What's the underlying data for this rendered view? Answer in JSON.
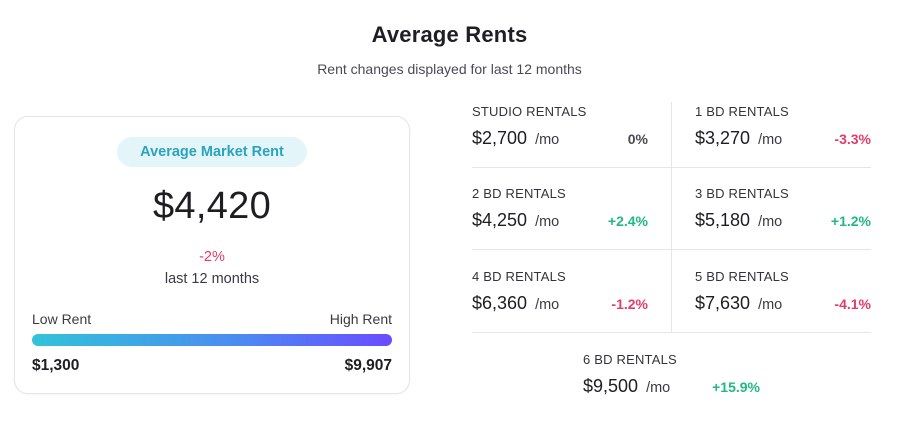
{
  "header": {
    "title": "Average Rents",
    "subtitle": "Rent changes displayed for last 12 months"
  },
  "market": {
    "badge": "Average Market Rent",
    "value": "$4,420",
    "change": "-2%",
    "period": "last 12 months",
    "low_label": "Low Rent",
    "high_label": "High Rent",
    "low_value": "$1,300",
    "high_value": "$9,907",
    "gradient_colors": [
      "#31c3d8",
      "#6a4cff"
    ]
  },
  "rentals": [
    {
      "label": "STUDIO RENTALS",
      "price": "$2,700",
      "unit": "/mo",
      "change": "0%",
      "trend": "neutral"
    },
    {
      "label": "1 BD RENTALS",
      "price": "$3,270",
      "unit": "/mo",
      "change": "-3.3%",
      "trend": "down"
    },
    {
      "label": "2 BD RENTALS",
      "price": "$4,250",
      "unit": "/mo",
      "change": "+2.4%",
      "trend": "up"
    },
    {
      "label": "3 BD RENTALS",
      "price": "$5,180",
      "unit": "/mo",
      "change": "+1.2%",
      "trend": "up"
    },
    {
      "label": "4 BD RENTALS",
      "price": "$6,360",
      "unit": "/mo",
      "change": "-1.2%",
      "trend": "down"
    },
    {
      "label": "5 BD RENTALS",
      "price": "$7,630",
      "unit": "/mo",
      "change": "-4.1%",
      "trend": "down"
    },
    {
      "label": "6 BD RENTALS",
      "price": "$9,500",
      "unit": "/mo",
      "change": "+15.9%",
      "trend": "up"
    }
  ],
  "colors": {
    "up": "#20b886",
    "down": "#e23c6a",
    "badge_text": "#2aa3bf",
    "badge_bg": "#e4f5f9"
  }
}
